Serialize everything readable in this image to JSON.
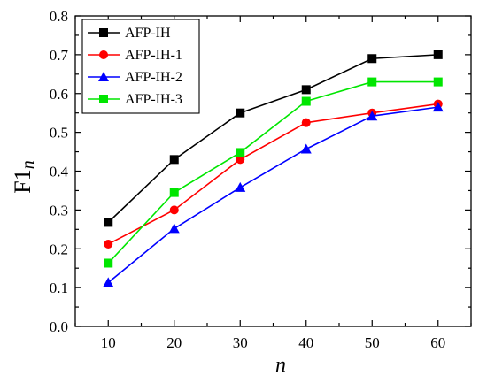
{
  "chart_data": {
    "type": "line",
    "title": "",
    "xlabel": "n",
    "ylabel_main": "F1",
    "ylabel_sub": "n",
    "x": [
      10,
      20,
      30,
      40,
      50,
      60
    ],
    "xlim": [
      5,
      65
    ],
    "ylim": [
      0,
      0.8
    ],
    "x_ticks": [
      "10",
      "20",
      "30",
      "40",
      "50",
      "60"
    ],
    "y_ticks": [
      "0.0",
      "0.1",
      "0.2",
      "0.3",
      "0.4",
      "0.5",
      "0.6",
      "0.7",
      "0.8"
    ],
    "legend_position": "top-left",
    "grid": false,
    "series": [
      {
        "name": "AFP-IH",
        "color": "#000000",
        "marker": "square",
        "values": [
          0.268,
          0.43,
          0.55,
          0.61,
          0.69,
          0.7
        ]
      },
      {
        "name": "AFP-IH-1",
        "color": "#ff0000",
        "marker": "circle",
        "values": [
          0.212,
          0.3,
          0.43,
          0.525,
          0.55,
          0.573
        ]
      },
      {
        "name": "AFP-IH-2",
        "color": "#0000ff",
        "marker": "triangle",
        "values": [
          0.113,
          0.252,
          0.358,
          0.457,
          0.542,
          0.565
        ]
      },
      {
        "name": "AFP-IH-3",
        "color": "#00e600",
        "marker": "square",
        "values": [
          0.163,
          0.345,
          0.448,
          0.58,
          0.63,
          0.63
        ]
      }
    ]
  }
}
